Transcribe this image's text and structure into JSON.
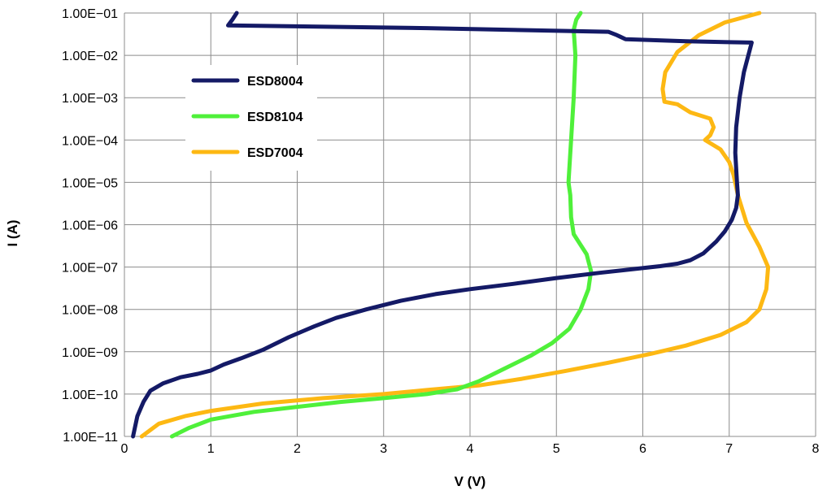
{
  "chart_data": {
    "type": "line",
    "title": "",
    "xlabel": "V (V)",
    "ylabel": "I (A)",
    "x_scale": "linear",
    "y_scale": "log",
    "xlim": [
      0,
      8
    ],
    "ylim": [
      1e-11,
      0.1
    ],
    "x_ticks": [
      "0",
      "1",
      "2",
      "3",
      "4",
      "5",
      "6",
      "7",
      "8"
    ],
    "y_ticks": [
      "1.00E−11",
      "1.00E−10",
      "1.00E−09",
      "1.00E−08",
      "1.00E−07",
      "1.00E−06",
      "1.00E−05",
      "1.00E−04",
      "1.00E−03",
      "1.00E−02",
      "1.00E−01"
    ],
    "grid": true,
    "legend": "upper-left inside plot",
    "series": [
      {
        "name": "ESD8004",
        "color": "#141a66",
        "points": [
          [
            0.1,
            1e-11
          ],
          [
            0.15,
            3e-11
          ],
          [
            0.22,
            6.5e-11
          ],
          [
            0.3,
            1.2e-10
          ],
          [
            0.45,
            1.8e-10
          ],
          [
            0.65,
            2.5e-10
          ],
          [
            0.85,
            3e-10
          ],
          [
            1.0,
            3.6e-10
          ],
          [
            1.15,
            5e-10
          ],
          [
            1.35,
            7e-10
          ],
          [
            1.6,
            1.1e-09
          ],
          [
            1.9,
            2.2e-09
          ],
          [
            2.2,
            4e-09
          ],
          [
            2.45,
            6.3e-09
          ],
          [
            2.8,
            1e-08
          ],
          [
            3.2,
            1.6e-08
          ],
          [
            3.6,
            2.3e-08
          ],
          [
            4.0,
            3e-08
          ],
          [
            4.5,
            4e-08
          ],
          [
            5.0,
            5.5e-08
          ],
          [
            5.5,
            7.3e-08
          ],
          [
            5.9,
            9e-08
          ],
          [
            6.2,
            1.05e-07
          ],
          [
            6.4,
            1.2e-07
          ],
          [
            6.55,
            1.45e-07
          ],
          [
            6.7,
            2.1e-07
          ],
          [
            6.85,
            4e-07
          ],
          [
            6.95,
            7e-07
          ],
          [
            7.03,
            1.3e-06
          ],
          [
            7.08,
            2.5e-06
          ],
          [
            7.1,
            5e-06
          ],
          [
            7.09,
            1e-05
          ],
          [
            7.07,
            5e-05
          ],
          [
            7.08,
            0.0002
          ],
          [
            7.12,
            0.001
          ],
          [
            7.17,
            0.004
          ],
          [
            7.26,
            0.02
          ],
          [
            6.5,
            0.0215
          ],
          [
            5.8,
            0.024
          ],
          [
            5.7,
            0.03
          ],
          [
            5.6,
            0.036
          ],
          [
            3.5,
            0.044
          ],
          [
            1.2,
            0.051
          ],
          [
            1.25,
            0.07
          ],
          [
            1.3,
            0.1
          ]
        ]
      },
      {
        "name": "ESD8104",
        "color": "#4ff03a",
        "points": [
          [
            0.55,
            1e-11
          ],
          [
            0.75,
            1.6e-11
          ],
          [
            1.0,
            2.5e-11
          ],
          [
            1.5,
            3.8e-11
          ],
          [
            2.0,
            5e-11
          ],
          [
            2.5,
            6.5e-11
          ],
          [
            3.0,
            8e-11
          ],
          [
            3.5,
            1e-10
          ],
          [
            3.85,
            1.3e-10
          ],
          [
            4.1,
            2e-10
          ],
          [
            4.4,
            4e-10
          ],
          [
            4.7,
            8e-10
          ],
          [
            4.95,
            1.6e-09
          ],
          [
            5.15,
            3.5e-09
          ],
          [
            5.28,
            1e-08
          ],
          [
            5.37,
            3e-08
          ],
          [
            5.4,
            8e-08
          ],
          [
            5.35,
            2e-07
          ],
          [
            5.2,
            6e-07
          ],
          [
            5.17,
            1.5e-06
          ],
          [
            5.16,
            5e-06
          ],
          [
            5.14,
            1e-05
          ],
          [
            5.17,
            0.0001
          ],
          [
            5.2,
            0.001
          ],
          [
            5.22,
            0.01
          ],
          [
            5.2,
            0.04
          ],
          [
            5.23,
            0.07
          ],
          [
            5.28,
            0.1
          ]
        ]
      },
      {
        "name": "ESD7004",
        "color": "#fdb813",
        "points": [
          [
            0.2,
            1e-11
          ],
          [
            0.4,
            2e-11
          ],
          [
            0.7,
            3e-11
          ],
          [
            1.0,
            4e-11
          ],
          [
            1.6,
            6e-11
          ],
          [
            2.3,
            8e-11
          ],
          [
            3.0,
            1e-10
          ],
          [
            3.5,
            1.25e-10
          ],
          [
            4.1,
            1.6e-10
          ],
          [
            4.6,
            2.3e-10
          ],
          [
            5.1,
            3.5e-10
          ],
          [
            5.6,
            5.5e-10
          ],
          [
            6.1,
            9e-10
          ],
          [
            6.5,
            1.4e-09
          ],
          [
            6.9,
            2.5e-09
          ],
          [
            7.2,
            5e-09
          ],
          [
            7.35,
            1e-08
          ],
          [
            7.43,
            3e-08
          ],
          [
            7.45,
            1e-07
          ],
          [
            7.35,
            3e-07
          ],
          [
            7.2,
            1.1e-06
          ],
          [
            7.1,
            5e-06
          ],
          [
            7.05,
            1.5e-05
          ],
          [
            7.0,
            3e-05
          ],
          [
            6.9,
            6e-05
          ],
          [
            6.72,
            0.0001
          ],
          [
            6.78,
            0.00013
          ],
          [
            6.82,
            0.0002
          ],
          [
            6.78,
            0.00032
          ],
          [
            6.55,
            0.00045
          ],
          [
            6.4,
            0.0007
          ],
          [
            6.25,
            0.0008
          ],
          [
            6.23,
            0.0016
          ],
          [
            6.26,
            0.004
          ],
          [
            6.4,
            0.012
          ],
          [
            6.65,
            0.03
          ],
          [
            6.95,
            0.06
          ],
          [
            7.35,
            0.1
          ]
        ]
      }
    ]
  }
}
